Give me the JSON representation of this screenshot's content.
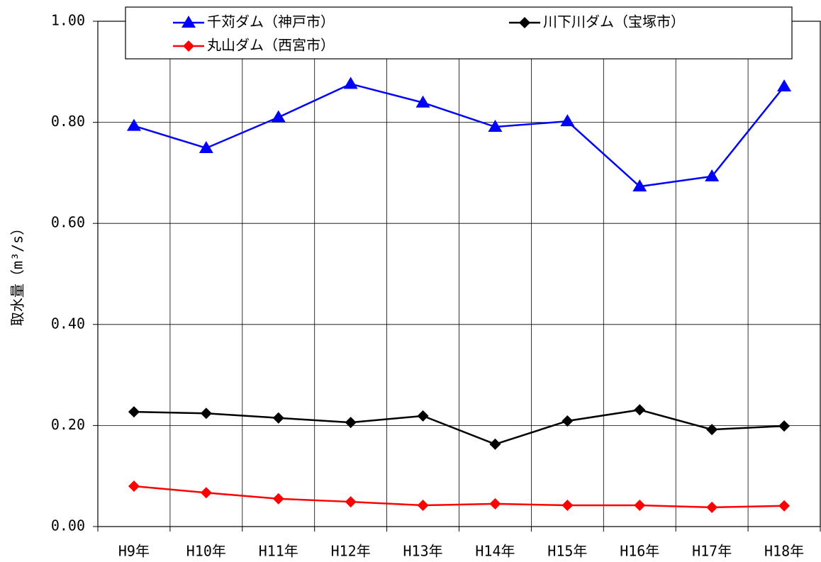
{
  "chart_data": {
    "type": "line",
    "y_label": "取水量（m³/s）",
    "categories": [
      "H9年",
      "H10年",
      "H11年",
      "H12年",
      "H13年",
      "H14年",
      "H15年",
      "H16年",
      "H17年",
      "H18年"
    ],
    "series": [
      {
        "name": "千苅ダム（神戸市）",
        "color": "#0000ff",
        "marker": "triangle",
        "values": [
          0.793,
          0.749,
          0.81,
          0.876,
          0.839,
          0.791,
          0.802,
          0.673,
          0.693,
          0.871
        ]
      },
      {
        "name": "川下川ダム（宝塚市）",
        "color": "#000000",
        "marker": "diamond",
        "values": [
          0.227,
          0.224,
          0.215,
          0.206,
          0.219,
          0.163,
          0.209,
          0.231,
          0.192,
          0.199
        ]
      },
      {
        "name": "丸山ダム（西宮市）",
        "color": "#ff0000",
        "marker": "diamond",
        "values": [
          0.08,
          0.067,
          0.055,
          0.049,
          0.042,
          0.045,
          0.042,
          0.042,
          0.038,
          0.041
        ]
      }
    ],
    "ylim": [
      0,
      1
    ],
    "yticks": [
      {
        "value": 0,
        "label": "0.00"
      },
      {
        "value": 0.2,
        "label": "0.20"
      },
      {
        "value": 0.4,
        "label": "0.40"
      },
      {
        "value": 0.6,
        "label": "0.60"
      },
      {
        "value": 0.8,
        "label": "0.80"
      },
      {
        "value": 1,
        "label": "1.00"
      }
    ],
    "grid": true,
    "legend": "top"
  }
}
